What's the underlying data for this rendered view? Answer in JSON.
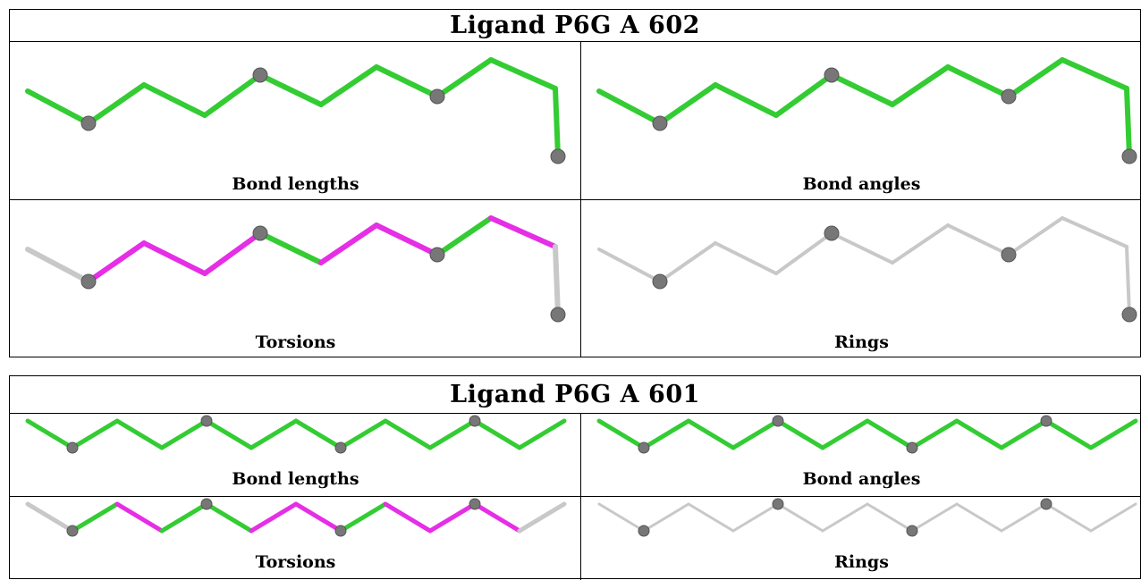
{
  "tables": [
    {
      "title": "Ligand P6G A 602",
      "cells": [
        {
          "label": "Bond lengths",
          "scheme": "green"
        },
        {
          "label": "Bond angles",
          "scheme": "green"
        },
        {
          "label": "Torsions",
          "scheme": "torsion"
        },
        {
          "label": "Rings",
          "scheme": "gray"
        }
      ]
    },
    {
      "title": "Ligand P6G A 601",
      "cells": [
        {
          "label": "Bond lengths",
          "scheme": "green"
        },
        {
          "label": "Bond angles",
          "scheme": "green"
        },
        {
          "label": "Torsions",
          "scheme": "torsion"
        },
        {
          "label": "Rings",
          "scheme": "gray"
        }
      ]
    }
  ],
  "colors": {
    "outlier": "#33cc33",
    "torsion_outlier": "#e62ee6",
    "unchecked": "#c8c8c8",
    "atom": "#777777"
  }
}
